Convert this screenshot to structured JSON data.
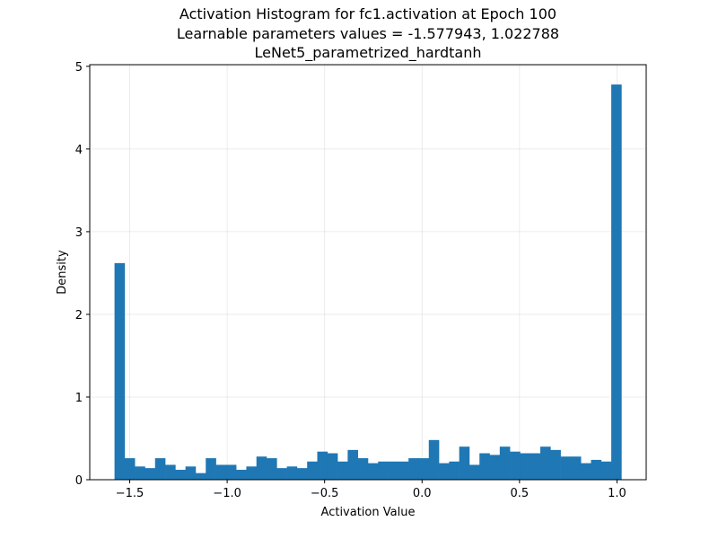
{
  "chart_data": {
    "type": "bar",
    "title_lines": [
      "Activation Histogram for fc1.activation at Epoch 100",
      "Learnable parameters values = -1.577943, 1.022788",
      "LeNet5_parametrized_hardtanh"
    ],
    "xlabel": "Activation Value",
    "ylabel": "Density",
    "xlim": [
      -1.705,
      1.15
    ],
    "ylim": [
      0,
      5.02
    ],
    "x_ticks": [
      -1.5,
      -1.0,
      -0.5,
      0.0,
      0.5,
      1.0
    ],
    "x_tick_labels": [
      "−1.5",
      "−1.0",
      "−0.5",
      "0.0",
      "0.5",
      "1.0"
    ],
    "y_ticks": [
      0,
      1,
      2,
      3,
      4,
      5
    ],
    "y_tick_labels": [
      "0",
      "1",
      "2",
      "3",
      "4",
      "5"
    ],
    "grid": true,
    "bin_start": -1.577943,
    "bin_end": 1.022788,
    "bar_color": "#1f77b4",
    "values": [
      2.62,
      0.26,
      0.16,
      0.14,
      0.26,
      0.18,
      0.12,
      0.16,
      0.08,
      0.26,
      0.18,
      0.18,
      0.12,
      0.16,
      0.28,
      0.26,
      0.14,
      0.16,
      0.14,
      0.22,
      0.34,
      0.32,
      0.22,
      0.36,
      0.26,
      0.2,
      0.22,
      0.22,
      0.22,
      0.26,
      0.26,
      0.48,
      0.2,
      0.22,
      0.4,
      0.18,
      0.32,
      0.3,
      0.4,
      0.34,
      0.32,
      0.32,
      0.4,
      0.36,
      0.28,
      0.28,
      0.2,
      0.24,
      0.22,
      4.78
    ]
  }
}
